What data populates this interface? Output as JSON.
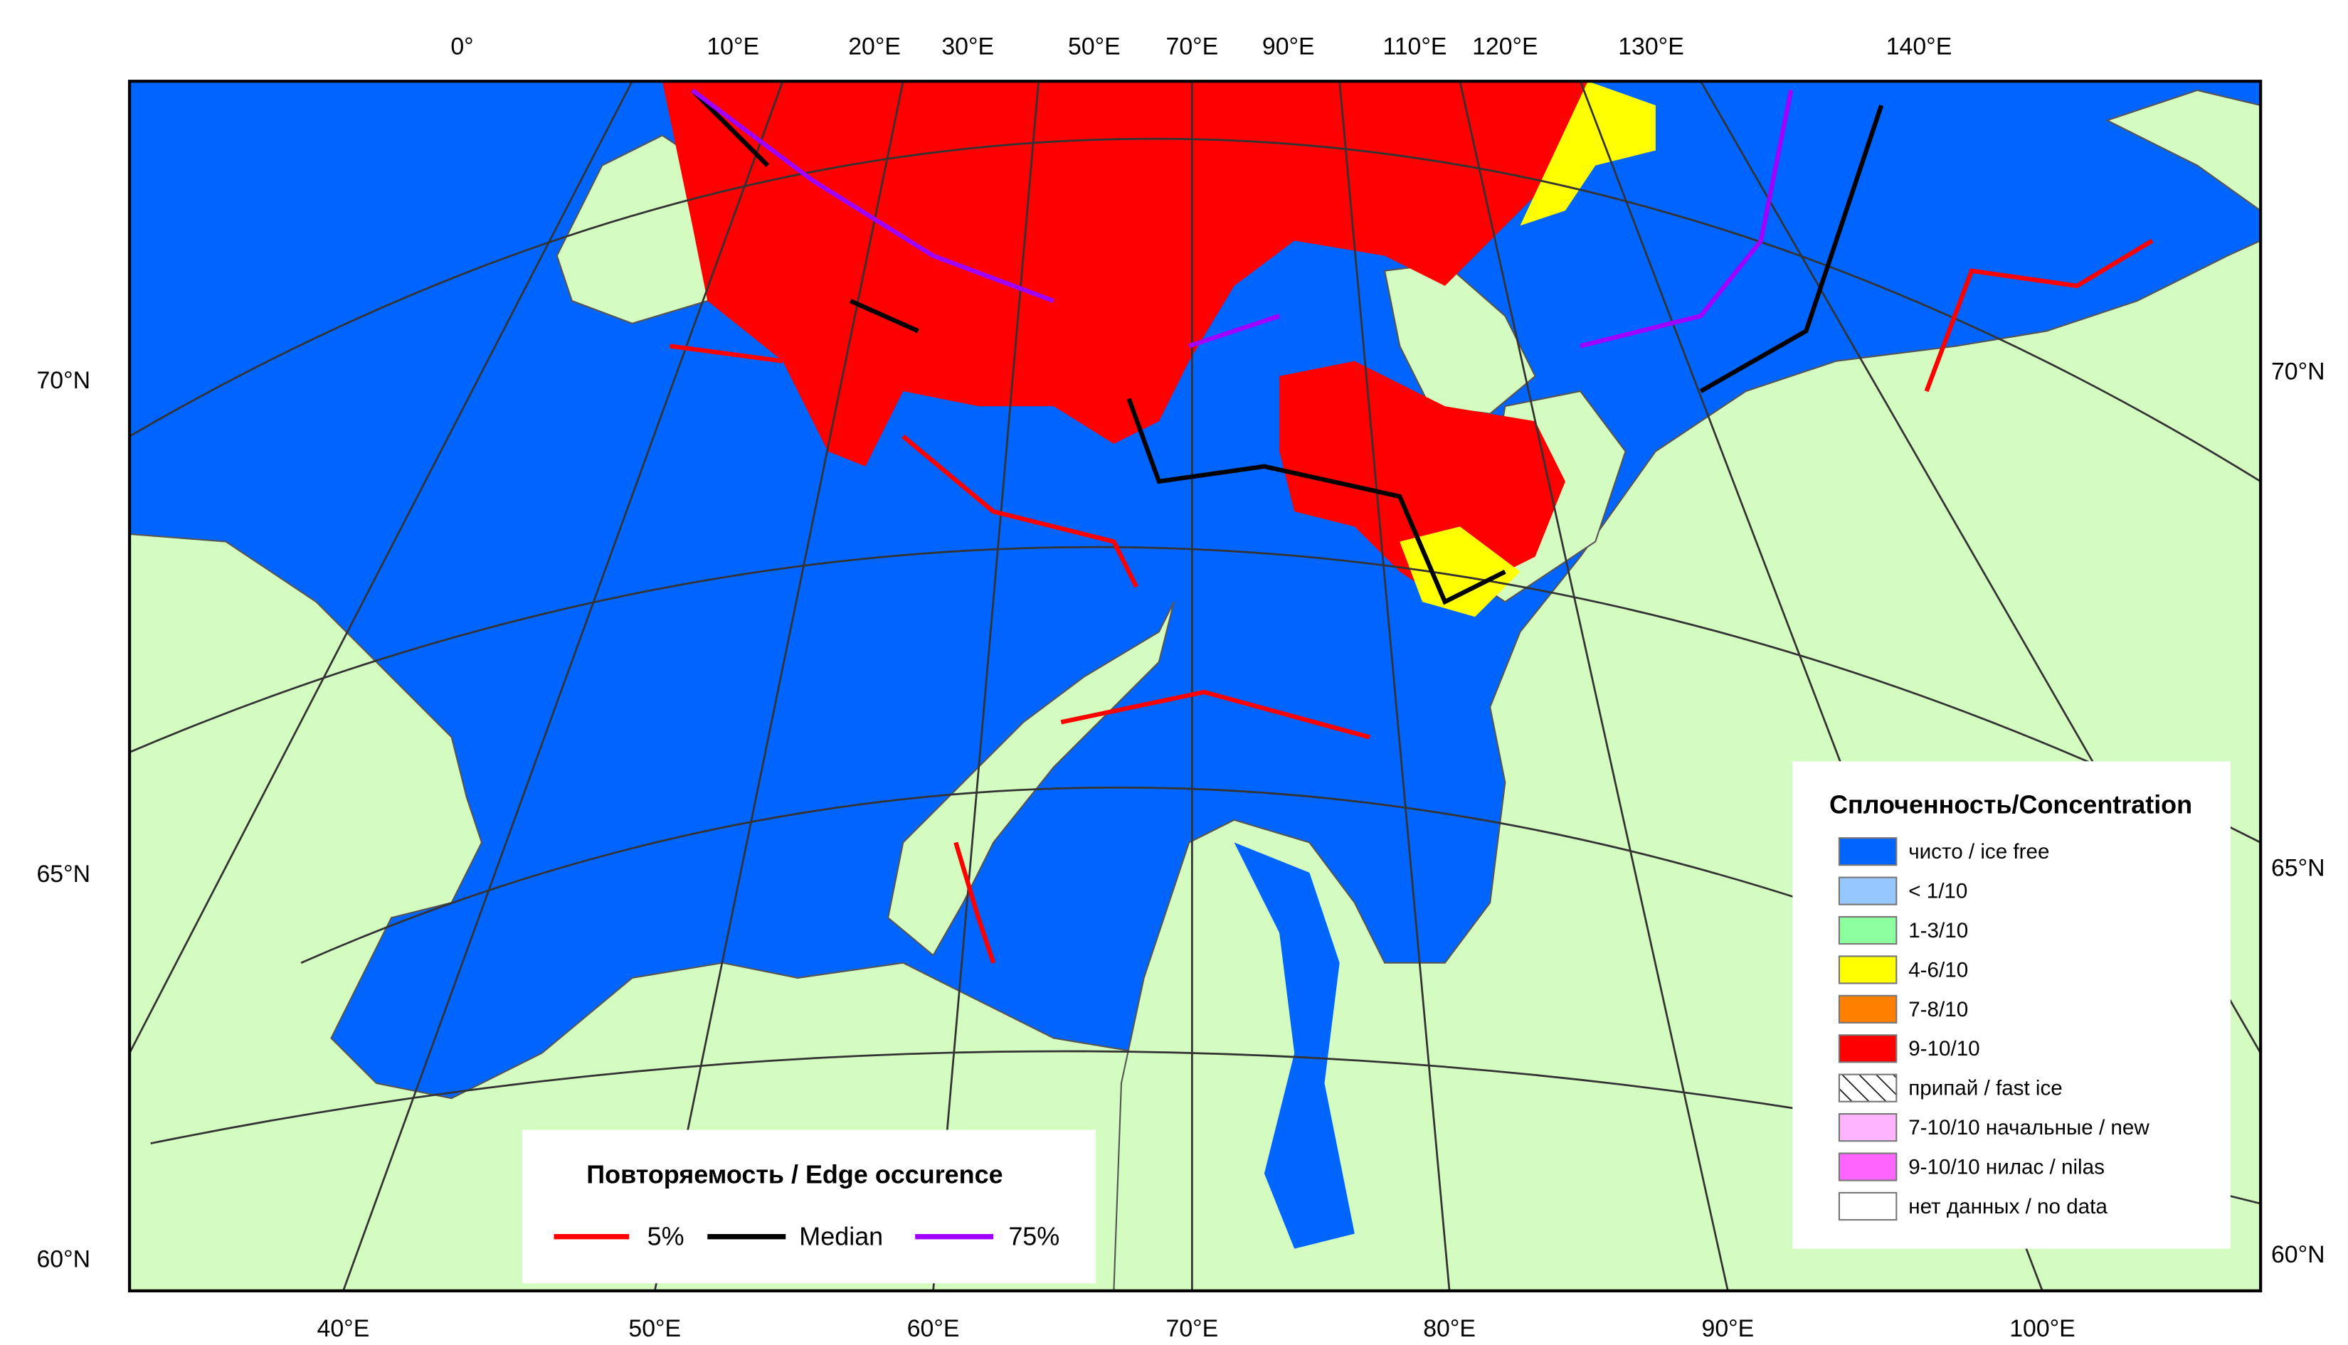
{
  "map": {
    "top_labels": [
      "0°",
      "10°E",
      "20°E",
      "30°E",
      "50°E",
      "70°E",
      "90°E",
      "110°E",
      "120°E",
      "130°E",
      "140°E"
    ],
    "bottom_labels": [
      "40°E",
      "50°E",
      "60°E",
      "70°E",
      "80°E",
      "90°E",
      "100°E"
    ],
    "left_labels": [
      "70°N",
      "65°N",
      "60°N"
    ],
    "right_labels": [
      "70°N",
      "65°N",
      "60°N"
    ]
  },
  "legend_concentration": {
    "title": "Сплоченность/Concentration",
    "items": [
      {
        "label": "чисто / ice free",
        "color": "#0064ff"
      },
      {
        "label": "< 1/10",
        "color": "#96c8ff"
      },
      {
        "label": "1-3/10",
        "color": "#8cff9f"
      },
      {
        "label": "4-6/10",
        "color": "#ffff00"
      },
      {
        "label": "7-8/10",
        "color": "#ff8000"
      },
      {
        "label": "9-10/10",
        "color": "#ff0000"
      },
      {
        "label": "припай / fast ice",
        "pattern": "hatch"
      },
      {
        "label": "7-10/10 начальные / new",
        "color": "#ffb4ff"
      },
      {
        "label": "9-10/10 нилас / nilas",
        "color": "#ff64ff"
      },
      {
        "label": "нет данных / no data",
        "color": "#ffffff"
      }
    ]
  },
  "legend_edge": {
    "title": "Повторяемость / Edge occurence",
    "items": [
      {
        "label": "5%",
        "color": "#ff0000"
      },
      {
        "label": "Median",
        "color": "#000000"
      },
      {
        "label": "75%",
        "color": "#a000ff"
      }
    ]
  }
}
